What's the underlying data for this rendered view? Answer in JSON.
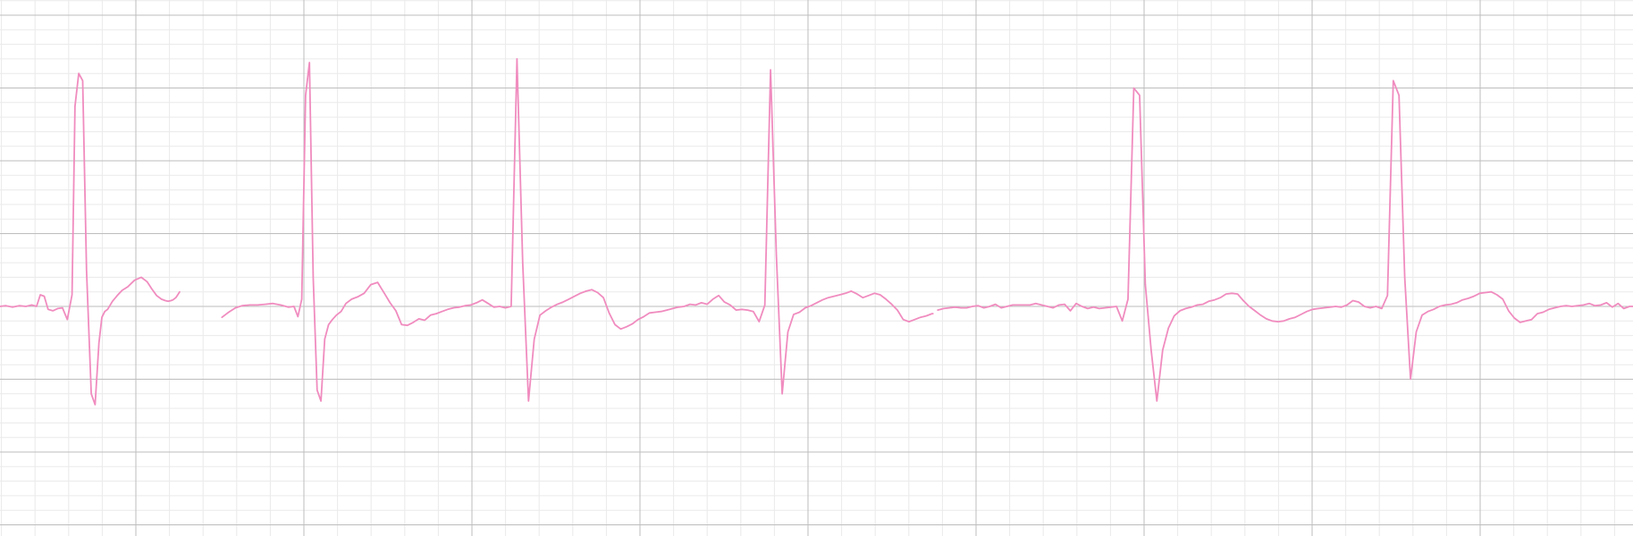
{
  "chart_data": {
    "type": "line",
    "title": "",
    "xlabel": "",
    "ylabel": "",
    "grid": true,
    "legend": "none",
    "major_grid": {
      "x_divisions": 9.714,
      "y_divisions": 7.35
    },
    "minor_per_major": 5,
    "colors": {
      "trace": "#f08cbf",
      "major_grid": "#bdbdbd",
      "minor_grid": "#eaeaea",
      "background": "#ffffff"
    },
    "series": [
      {
        "segments": [
          {
            "x": [
              0,
              0.06,
              0.13,
              0.2,
              0.27,
              0.33,
              0.38,
              0.42,
              0.46,
              0.5,
              0.55,
              0.6,
              0.65,
              0.7,
              0.75,
              0.78,
              0.82,
              0.86,
              0.9,
              0.95,
              0.99,
              1.03,
              1.06,
              1.09,
              1.12,
              1.17,
              1.22,
              1.27,
              1.33,
              1.4,
              1.47,
              1.53,
              1.58,
              1.63,
              1.68,
              1.72,
              1.75,
              1.78,
              1.8,
              1.83,
              1.85,
              1.87
            ],
            "y": [
              0.0,
              0.01,
              -0.01,
              0.01,
              0.0,
              0.02,
              0.0,
              0.16,
              0.14,
              -0.04,
              -0.06,
              -0.03,
              -0.02,
              -0.18,
              0.16,
              2.75,
              3.2,
              3.1,
              0.5,
              -1.2,
              -1.35,
              -0.5,
              -0.15,
              -0.07,
              -0.04,
              0.07,
              0.15,
              0.22,
              0.27,
              0.36,
              0.4,
              0.34,
              0.24,
              0.15,
              0.1,
              0.08,
              0.07,
              0.08,
              0.09,
              0.12,
              0.16,
              0.2
            ]
          },
          {
            "x": [
              2.31,
              2.38,
              2.45,
              2.52,
              2.6,
              2.68,
              2.76,
              2.84,
              2.92,
              3.0,
              3.06,
              3.1,
              3.14,
              3.18,
              3.22,
              3.26,
              3.3,
              3.34,
              3.38,
              3.42,
              3.46,
              3.5,
              3.55,
              3.6,
              3.66,
              3.72,
              3.79,
              3.86,
              3.93,
              4.0,
              4.06,
              4.12,
              4.18,
              4.24,
              4.3,
              4.36,
              4.42,
              4.48,
              4.54,
              4.6,
              4.66,
              4.72,
              4.78,
              4.84,
              4.9,
              4.96,
              5.02,
              5.08,
              5.14,
              5.2,
              5.26,
              5.32,
              5.38,
              5.44,
              5.5,
              5.56,
              5.62,
              5.68,
              5.74,
              5.8,
              5.86,
              5.92,
              5.98,
              6.04,
              6.1,
              6.16,
              6.22,
              6.28,
              6.34,
              6.4,
              6.46,
              6.52,
              6.58,
              6.64,
              6.7,
              6.76,
              6.82,
              6.88,
              6.94,
              7.0,
              7.06,
              7.12,
              7.18,
              7.24,
              7.3,
              7.36,
              7.42,
              7.48,
              7.54,
              7.6,
              7.66,
              7.72,
              7.78,
              7.84,
              7.9,
              7.96,
              8.02,
              8.08,
              8.14,
              8.2,
              8.26,
              8.32,
              8.38,
              8.44,
              8.5,
              8.56,
              8.62,
              8.68,
              8.74,
              8.8,
              8.86,
              8.92,
              8.98,
              9.04,
              9.1,
              9.16,
              9.22,
              9.28,
              9.34,
              9.4,
              9.46,
              9.52,
              9.58,
              9.64,
              9.7,
              9.71
            ],
            "y": [
              -0.15,
              -0.08,
              -0.02,
              0.01,
              0.02,
              0.02,
              0.03,
              0.04,
              0.02,
              -0.01,
              0.0,
              -0.14,
              0.1,
              2.9,
              3.35,
              0.4,
              -1.15,
              -1.3,
              -0.45,
              -0.25,
              -0.18,
              -0.12,
              -0.07,
              0.04,
              0.1,
              0.13,
              0.18,
              0.3,
              0.33,
              0.18,
              0.05,
              -0.06,
              -0.25,
              -0.26,
              -0.22,
              -0.17,
              -0.19,
              -0.12,
              -0.1,
              -0.07,
              -0.04,
              -0.02,
              -0.01,
              0.01,
              0.02,
              0.05,
              0.09,
              0.04,
              -0.01,
              0.0,
              -0.02,
              0.0,
              3.4,
              0.6,
              -1.3,
              -0.45,
              -0.12,
              -0.06,
              -0.01,
              0.03,
              0.06,
              0.1,
              0.14,
              0.18,
              0.21,
              0.23,
              0.19,
              0.12,
              -0.09,
              -0.25,
              -0.31,
              -0.28,
              -0.24,
              -0.18,
              -0.14,
              -0.09,
              -0.08,
              -0.07,
              -0.05,
              -0.03,
              -0.01,
              0.0,
              0.03,
              0.02,
              0.05,
              0.03,
              0.1,
              0.15,
              0.06,
              0.02,
              -0.05,
              -0.04,
              -0.05,
              -0.07,
              -0.21,
              0.02,
              3.25,
              0.7,
              -1.2,
              -0.35,
              -0.11,
              -0.08,
              -0.02,
              0.01,
              0.05,
              0.09,
              0.12,
              0.14,
              0.16,
              0.18,
              0.21,
              0.17,
              0.12,
              0.15,
              0.18,
              0.16,
              0.1,
              0.03,
              -0.05,
              -0.18,
              -0.21,
              -0.18,
              -0.15,
              -0.13,
              -0.1,
              -0.1
            ],
            "x2": [
              9.76,
              9.82,
              9.88,
              9.94,
              10.0,
              10.06,
              10.12,
              10.18,
              10.24,
              10.3,
              10.36,
              10.42,
              10.48,
              10.54,
              10.6,
              10.66,
              10.72,
              10.78,
              10.84,
              10.9,
              10.96,
              11.02,
              11.08,
              11.14,
              11.2,
              11.26,
              11.32,
              11.38,
              11.44,
              11.5,
              11.56,
              11.62,
              11.68,
              11.74,
              11.8,
              11.86,
              11.92,
              11.98,
              12.04,
              12.1,
              12.16,
              12.22,
              12.28,
              12.34,
              12.4,
              12.46,
              12.52,
              12.58,
              12.64,
              12.7,
              12.76,
              12.82,
              12.88,
              12.94,
              13.0,
              13.06,
              13.12,
              13.18,
              13.24,
              13.3,
              13.36,
              13.42,
              13.48,
              13.54,
              13.6,
              13.66,
              13.72,
              13.78,
              13.84,
              13.9,
              13.96,
              14.02,
              14.08,
              14.14,
              14.2,
              14.26,
              14.32,
              14.38,
              14.44,
              14.5,
              14.56,
              14.62,
              14.68,
              14.74,
              14.8,
              14.86,
              14.92,
              14.98,
              15.04,
              15.1,
              15.16,
              15.22,
              15.28,
              15.34,
              15.4,
              15.46,
              15.52,
              15.58,
              15.64,
              15.7,
              15.76,
              15.82,
              15.88,
              15.94,
              16.0,
              16.06,
              16.12,
              16.18,
              16.24,
              16.3,
              16.36,
              16.42,
              16.48,
              16.54,
              16.6,
              16.66,
              16.72,
              16.78,
              16.84,
              16.9,
              16.96,
              17.0
            ],
            "y2": [
              -0.05,
              -0.03,
              -0.02,
              -0.01,
              -0.02,
              -0.02,
              0.0,
              0.01,
              -0.02,
              0.0,
              0.03,
              -0.02,
              0.0,
              0.02,
              0.02,
              0.02,
              0.02,
              0.04,
              0.02,
              0.0,
              -0.02,
              0.02,
              0.03,
              -0.06,
              0.04,
              0.0,
              -0.03,
              -0.01,
              -0.03,
              -0.02,
              -0.01,
              0.0,
              -0.2,
              0.1,
              3.0,
              2.9,
              0.3,
              -0.6,
              -1.3,
              -0.6,
              -0.3,
              -0.13,
              -0.06,
              -0.03,
              -0.01,
              0.02,
              0.03,
              0.07,
              0.09,
              0.12,
              0.17,
              0.18,
              0.17,
              0.08,
              0.0,
              -0.06,
              -0.12,
              -0.17,
              -0.2,
              -0.21,
              -0.2,
              -0.17,
              -0.15,
              -0.11,
              -0.07,
              -0.04,
              -0.03,
              -0.02,
              -0.01,
              0.0,
              -0.01,
              0.02,
              0.08,
              0.06,
              0.0,
              -0.02,
              0.0,
              -0.03,
              0.15,
              3.1,
              2.9,
              0.4,
              -1.0,
              -0.35,
              -0.12,
              -0.07,
              -0.04,
              0.0,
              0.02,
              0.03,
              0.05,
              0.09,
              0.11,
              0.14,
              0.18,
              0.19,
              0.2,
              0.16,
              0.1,
              -0.06,
              -0.16,
              -0.22,
              -0.2,
              -0.18,
              -0.1,
              -0.08,
              -0.04,
              -0.02,
              0.0,
              0.01,
              0.0,
              0.01,
              0.02,
              0.04,
              0.01,
              0.02,
              0.05,
              -0.01,
              0.04,
              -0.03,
              0.0,
              0.0
            ]
          }
        ]
      }
    ]
  }
}
